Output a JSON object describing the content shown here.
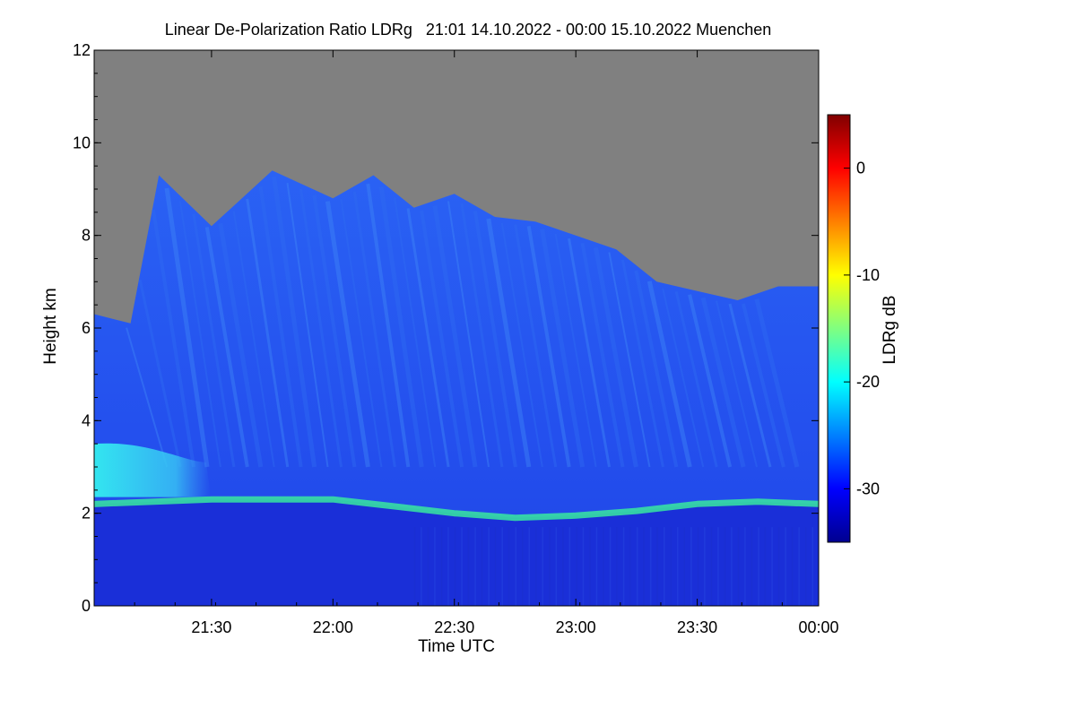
{
  "chart_data": {
    "type": "heatmap",
    "title": "Linear De-Polarization Ratio LDRg   21:01 14.10.2022 - 00:00 15.10.2022 Muenchen",
    "xlabel": "Time UTC",
    "ylabel": "Height km",
    "x_ticks": [
      "21:30",
      "22:00",
      "22:30",
      "23:00",
      "23:30",
      "00:00"
    ],
    "y_ticks": [
      "0",
      "2",
      "4",
      "6",
      "8",
      "10",
      "12"
    ],
    "xlim": [
      "21:01",
      "00:00"
    ],
    "ylim": [
      0,
      12
    ],
    "colorbar": {
      "label": "LDRg dB",
      "ticks": [
        "0",
        "-10",
        "-20",
        "-30"
      ],
      "range": [
        -35,
        5
      ],
      "colormap": "jet"
    },
    "no_data_color": "#808080",
    "features": {
      "melting_layer_km": [
        {
          "t": "21:01",
          "h": 2.2
        },
        {
          "t": "21:30",
          "h": 2.3
        },
        {
          "t": "22:00",
          "h": 2.3
        },
        {
          "t": "22:15",
          "h": 2.15
        },
        {
          "t": "22:30",
          "h": 2.0
        },
        {
          "t": "22:45",
          "h": 1.9
        },
        {
          "t": "23:00",
          "h": 1.95
        },
        {
          "t": "23:15",
          "h": 2.05
        },
        {
          "t": "23:30",
          "h": 2.2
        },
        {
          "t": "23:45",
          "h": 2.25
        },
        {
          "t": "00:00",
          "h": 2.2
        }
      ],
      "cloud_top_km": [
        {
          "t": "21:01",
          "h": 6.3
        },
        {
          "t": "21:10",
          "h": 6.1
        },
        {
          "t": "21:17",
          "h": 9.3
        },
        {
          "t": "21:30",
          "h": 8.2
        },
        {
          "t": "21:45",
          "h": 9.4
        },
        {
          "t": "22:00",
          "h": 8.8
        },
        {
          "t": "22:10",
          "h": 9.3
        },
        {
          "t": "22:20",
          "h": 8.6
        },
        {
          "t": "22:30",
          "h": 8.9
        },
        {
          "t": "22:40",
          "h": 8.4
        },
        {
          "t": "22:50",
          "h": 8.3
        },
        {
          "t": "23:00",
          "h": 8.0
        },
        {
          "t": "23:10",
          "h": 7.7
        },
        {
          "t": "23:20",
          "h": 7.0
        },
        {
          "t": "23:30",
          "h": 6.8
        },
        {
          "t": "23:40",
          "h": 6.6
        },
        {
          "t": "23:50",
          "h": 6.9
        },
        {
          "t": "00:00",
          "h": 6.9
        }
      ]
    }
  },
  "colors": {
    "background": "#ffffff",
    "no_data": "#808080",
    "lower_layer": "#1a2fd8",
    "upper_cloud": "#2c56f2",
    "melting_layer": "#38e8a0"
  }
}
